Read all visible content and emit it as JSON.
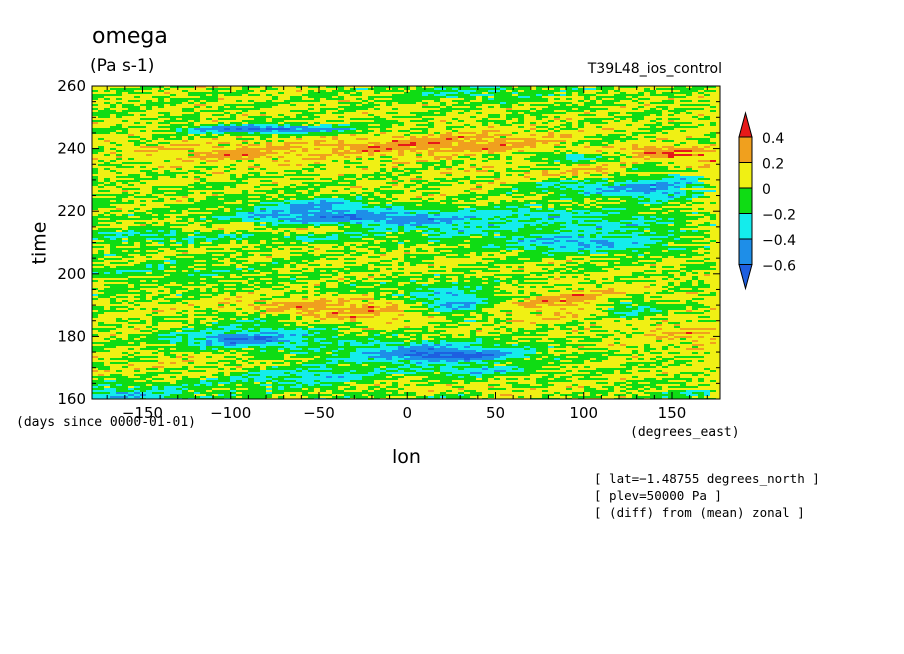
{
  "chart_data": {
    "type": "heatmap",
    "title": "omega",
    "units": "(Pa s-1)",
    "run_label": "T39L48_ios_control",
    "xlabel": "lon",
    "xunits": "(degrees_east)",
    "ylabel": "time",
    "yunits": "(days since 0000-01-01)",
    "xlim": [
      -178.6,
      177.2
    ],
    "ylim": [
      160,
      260
    ],
    "xticks": [
      -150,
      -100,
      -50,
      0,
      50,
      100,
      150
    ],
    "yticks": [
      160,
      180,
      200,
      220,
      240,
      260
    ],
    "contour_levels": [
      -0.6,
      -0.4,
      -0.2,
      0,
      0.2,
      0.4
    ],
    "colorbar_labels": [
      "0.4",
      "0.2",
      "0",
      "−0.2",
      "−0.4",
      "−0.6"
    ],
    "colors": {
      "below_-0.6": "#1e5fe0",
      "-0.6_to_-0.4": "#1e8ee8",
      "-0.4_to_-0.2": "#14ecec",
      "-0.2_to_0": "#0fdc14",
      "0_to_0.2": "#f0f014",
      "0.2_to_0.4": "#f0a01e",
      "above_0.4": "#e61919"
    },
    "notes": [
      "[ lat=−1.48755 degrees_north ]",
      "[ plev=50000 Pa ]",
      "[ (diff) from (mean) zonal ]"
    ]
  }
}
